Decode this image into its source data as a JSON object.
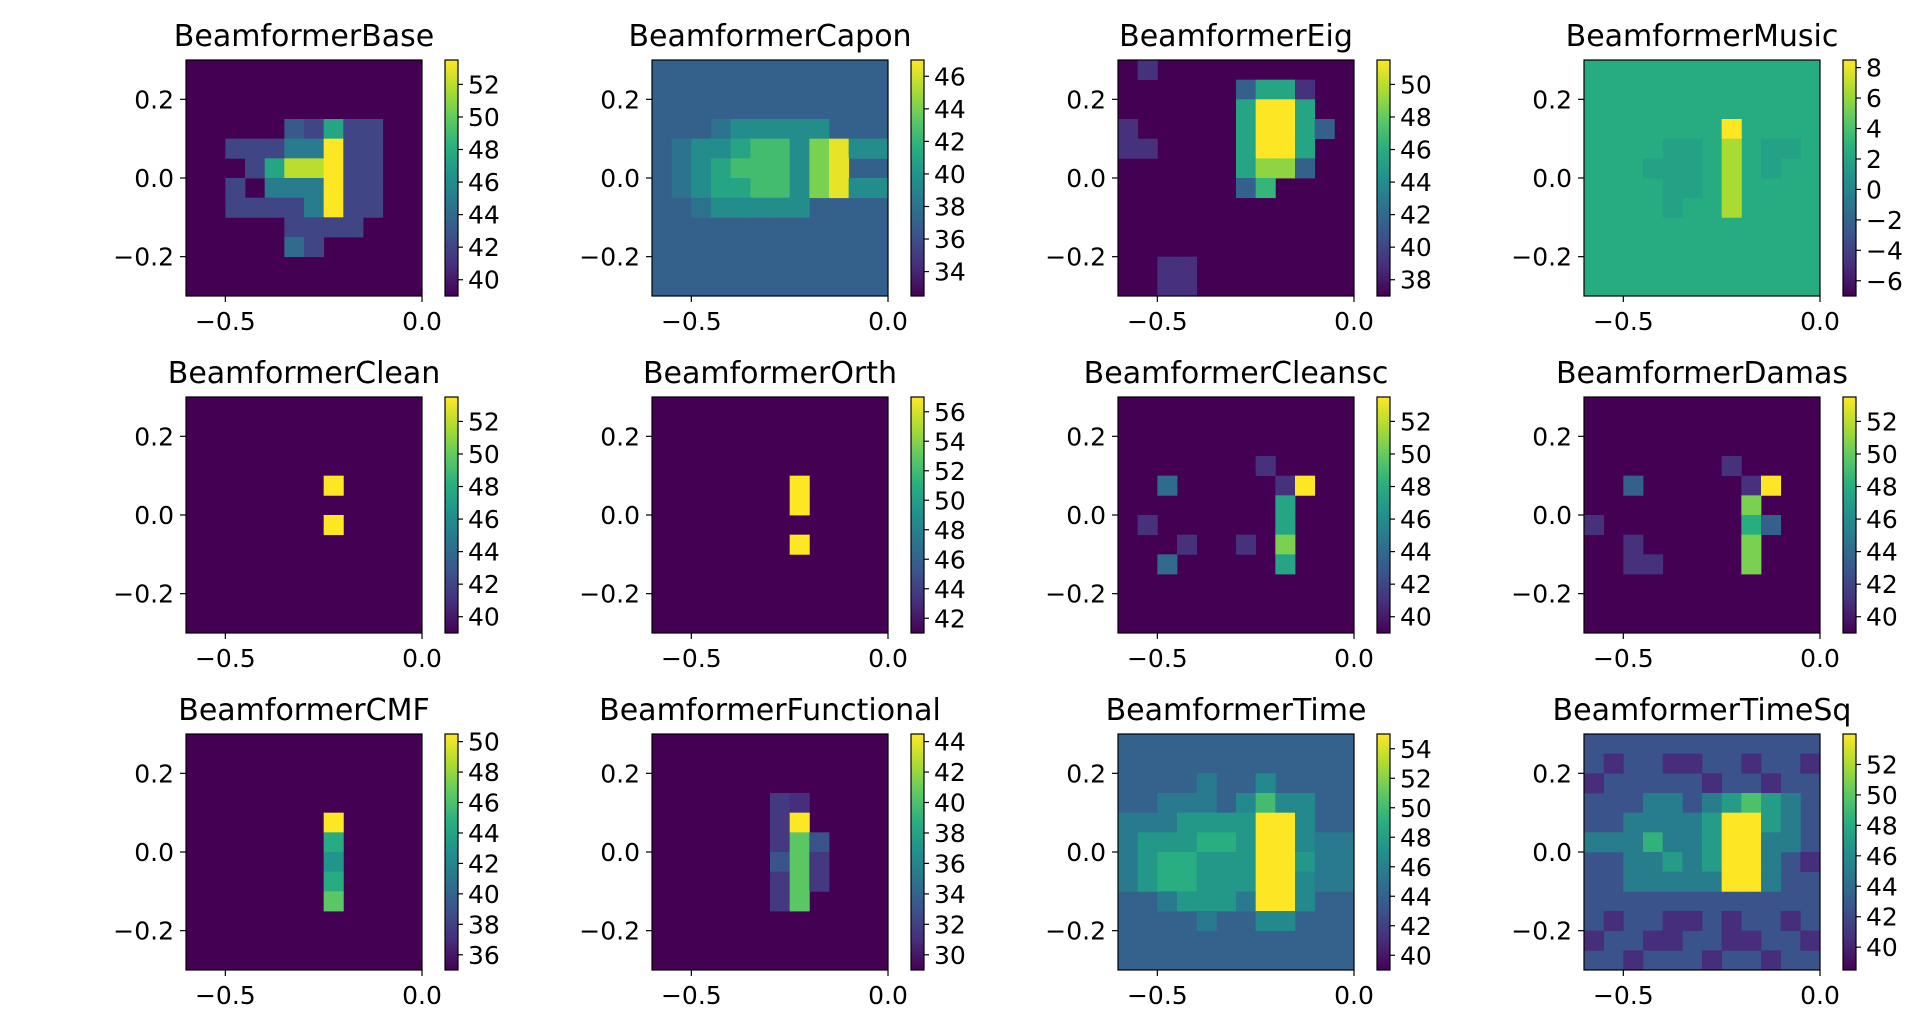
{
  "chart_data": [
    {
      "type": "heatmap",
      "title": "BeamformerBase",
      "xlim": [
        -0.6,
        0.0
      ],
      "ylim": [
        -0.3,
        0.3
      ],
      "xticks": [
        "−0.5",
        "0.0"
      ],
      "yticks": [
        "0.2",
        "0.0",
        "−0.2"
      ],
      "colorbar_ticks": [
        "52",
        "50",
        "48",
        "46",
        "44",
        "42",
        "40"
      ],
      "colorbar_range": [
        39.0,
        53.5
      ],
      "grid_size": 12,
      "cells": {
        "rows": [
          ".....lmgmm..",
          "..mmmhhamm..",
          "...mgbbamm..",
          "..m.hhhamm..",
          "..mmmmhamm..",
          ".....mmmm...",
          ".....cm....."
        ],
        "start_row": 3,
        "levels": {
          "a": 53.5,
          "b": 52,
          "c": 44,
          "g": 47.5,
          "h": 45,
          "l": 43,
          "m": 42
        }
      }
    },
    {
      "type": "heatmap",
      "title": "BeamformerCapon",
      "xlim": [
        -0.6,
        0.0
      ],
      "ylim": [
        -0.3,
        0.3
      ],
      "xticks": [
        "−0.5",
        "0.0"
      ],
      "yticks": [
        "0.2",
        "0.0",
        "−0.2"
      ],
      "colorbar_ticks": [
        "46",
        "44",
        "42",
        "40",
        "38",
        "36",
        "34"
      ],
      "colorbar_range": [
        32.5,
        47.0
      ],
      "grid_size": 12,
      "background": 37,
      "cells": {
        "rows": [
          "..............",
          "...sttttt.....",
          ".sttuvvtwattss",
          ".stuvvvtwa..ss",
          ".stuuvvtwatt..",
          "..sttttt......"
        ],
        "start_row": 2,
        "levels": {
          "s": 38,
          "t": 39.5,
          "u": 41,
          "v": 42.5,
          "w": 44,
          "a": 46.5
        }
      }
    },
    {
      "type": "heatmap",
      "title": "BeamformerEig",
      "xlim": [
        -0.6,
        0.0
      ],
      "ylim": [
        -0.3,
        0.3
      ],
      "xticks": [
        "−0.5",
        "0.0"
      ],
      "yticks": [
        "0.2",
        "0.0",
        "−0.2"
      ],
      "colorbar_ticks": [
        "50",
        "48",
        "46",
        "44",
        "42",
        "40",
        "38"
      ],
      "colorbar_range": [
        37.0,
        51.5
      ],
      "grid_size": 12,
      "cells": {
        "rows": [
          ".n..........",
          "......pqqn..",
          "......qaaq..",
          "n.....qaaqp.",
          "nn....qaaq..",
          "......qbbp..",
          "......pr....",
          "............",
          "............",
          "............",
          "..nn........",
          "..nn........"
        ],
        "start_row": 0,
        "levels": {
          "a": 51.5,
          "b": 49,
          "n": 39,
          "p": 41.5,
          "q": 45.5,
          "r": 46.5
        }
      }
    },
    {
      "type": "heatmap",
      "title": "BeamformerMusic",
      "xlim": [
        -0.6,
        0.0
      ],
      "ylim": [
        -0.3,
        0.3
      ],
      "xticks": [
        "−0.5",
        "0.0"
      ],
      "yticks": [
        "0.2",
        "0.0",
        "−0.2"
      ],
      "colorbar_ticks": [
        "8",
        "6",
        "4",
        "2",
        "0",
        "−2",
        "−4",
        "−6"
      ],
      "colorbar_range": [
        -7.0,
        8.5
      ],
      "grid_size": 12,
      "background": 2.5,
      "cells": {
        "rows": [
          ".......a....",
          "....xx.b.xx.",
          "...xxx.b.x..",
          "....xx.b....",
          "....x..b...."
        ],
        "start_row": 3,
        "levels": {
          "a": 8.5,
          "b": 6.5,
          "x": 1.8
        }
      }
    },
    {
      "type": "heatmap",
      "title": "BeamformerClean",
      "xlim": [
        -0.6,
        0.0
      ],
      "ylim": [
        -0.3,
        0.3
      ],
      "xticks": [
        "−0.5",
        "0.0"
      ],
      "yticks": [
        "0.2",
        "0.0",
        "−0.2"
      ],
      "colorbar_ticks": [
        "52",
        "50",
        "48",
        "46",
        "44",
        "42",
        "40"
      ],
      "colorbar_range": [
        39.0,
        53.5
      ],
      "grid_size": 12,
      "cells": {
        "rows": [
          ".......a....",
          "............",
          ".......a...."
        ],
        "start_row": 4,
        "levels": {
          "a": 53.5
        }
      }
    },
    {
      "type": "heatmap",
      "title": "BeamformerOrth",
      "xlim": [
        -0.6,
        0.0
      ],
      "ylim": [
        -0.3,
        0.3
      ],
      "xticks": [
        "−0.5",
        "0.0"
      ],
      "yticks": [
        "0.2",
        "0.0",
        "−0.2"
      ],
      "colorbar_ticks": [
        "56",
        "54",
        "52",
        "50",
        "48",
        "46",
        "44",
        "42"
      ],
      "colorbar_range": [
        41.0,
        57.0
      ],
      "grid_size": 12,
      "cells": {
        "rows": [
          ".......a....",
          ".......a....",
          "............",
          ".......a...."
        ],
        "start_row": 4,
        "levels": {
          "a": 57.0
        }
      }
    },
    {
      "type": "heatmap",
      "title": "BeamformerCleansc",
      "xlim": [
        -0.6,
        0.0
      ],
      "ylim": [
        -0.3,
        0.3
      ],
      "xticks": [
        "−0.5",
        "0.0"
      ],
      "yticks": [
        "0.2",
        "0.0",
        "−0.2"
      ],
      "colorbar_ticks": [
        "52",
        "50",
        "48",
        "46",
        "44",
        "42",
        "40"
      ],
      "colorbar_range": [
        39.0,
        53.5
      ],
      "grid_size": 12,
      "cells": {
        "rows": [
          ".......k....",
          "..c.....ka..",
          "........g...",
          ".k......g...",
          "...k..k.b...",
          "..c.....g..."
        ],
        "start_row": 3,
        "levels": {
          "a": 53.5,
          "b": 50.5,
          "c": 44,
          "g": 47.5,
          "k": 41
        }
      }
    },
    {
      "type": "heatmap",
      "title": "BeamformerDamas",
      "xlim": [
        -0.6,
        0.0
      ],
      "ylim": [
        -0.3,
        0.3
      ],
      "xticks": [
        "−0.5",
        "0.0"
      ],
      "yticks": [
        "0.2",
        "0.0",
        "−0.2"
      ],
      "colorbar_ticks": [
        "52",
        "50",
        "48",
        "46",
        "44",
        "42",
        "40"
      ],
      "colorbar_range": [
        39.0,
        53.5
      ],
      "grid_size": 12,
      "cells": {
        "rows": [
          ".......k....",
          "..h.....ka..",
          "........b...",
          "k.......gh..",
          "..k.....b...",
          "..kk....b..."
        ],
        "start_row": 3,
        "levels": {
          "a": 53.5,
          "b": 50.5,
          "g": 48,
          "h": 43.5,
          "k": 41
        }
      }
    },
    {
      "type": "heatmap",
      "title": "BeamformerCMF",
      "xlim": [
        -0.6,
        0.0
      ],
      "ylim": [
        -0.3,
        0.3
      ],
      "xticks": [
        "−0.5",
        "0.0"
      ],
      "yticks": [
        "0.2",
        "0.0",
        "−0.2"
      ],
      "colorbar_ticks": [
        "50",
        "48",
        "46",
        "44",
        "42",
        "40",
        "38",
        "36"
      ],
      "colorbar_range": [
        35.0,
        50.5
      ],
      "grid_size": 12,
      "cells": {
        "rows": [
          ".......a....",
          ".......g....",
          ".......h....",
          ".......g....",
          ".......b...."
        ],
        "start_row": 4,
        "levels": {
          "a": 50.5,
          "b": 46.5,
          "g": 44.5,
          "h": 43
        }
      }
    },
    {
      "type": "heatmap",
      "title": "BeamformerFunctional",
      "xlim": [
        -0.6,
        0.0
      ],
      "ylim": [
        -0.3,
        0.3
      ],
      "xticks": [
        "−0.5",
        "0.0"
      ],
      "yticks": [
        "0.2",
        "0.0",
        "−0.2"
      ],
      "colorbar_ticks": [
        "44",
        "42",
        "40",
        "38",
        "36",
        "34",
        "32",
        "30"
      ],
      "colorbar_range": [
        29.0,
        44.5
      ],
      "grid_size": 12,
      "cells": {
        "rows": [
          "......ld....",
          "......la....",
          "......lbm...",
          "......mbl...",
          "......lbl...",
          "......lb...."
        ],
        "start_row": 3,
        "levels": {
          "a": 44.5,
          "b": 40.5,
          "d": 31,
          "l": 31.5,
          "m": 33
        }
      }
    },
    {
      "type": "heatmap",
      "title": "BeamformerTime",
      "xlim": [
        -0.6,
        0.0
      ],
      "ylim": [
        -0.3,
        0.3
      ],
      "xticks": [
        "−0.5",
        "0.0"
      ],
      "yticks": [
        "0.2",
        "0.0",
        "−0.2"
      ],
      "colorbar_ticks": [
        "54",
        "52",
        "50",
        "48",
        "46",
        "44",
        "42",
        "40"
      ],
      "colorbar_range": [
        39.0,
        55.0
      ],
      "grid_size": 12,
      "background": 44,
      "cells": {
        "rows": [
          "....y..z....",
          "..yyy.zgzz..",
          "yyyuuuuaaz..",
          "yuuuwwuaazyy",
          "yuwwuuuaauyy",
          "yuwwuuuaazyy",
          "..yuuuyaaz..",
          "....y..zz..."
        ],
        "start_row": 2,
        "levels": {
          "a": 55,
          "g": 50,
          "u": 47.5,
          "w": 49,
          "y": 45.5,
          "z": 46.5
        }
      }
    },
    {
      "type": "heatmap",
      "title": "BeamformerTimeSq",
      "xlim": [
        -0.6,
        0.0
      ],
      "ylim": [
        -0.3,
        0.3
      ],
      "xticks": [
        "−0.5",
        "0.0"
      ],
      "yticks": [
        "0.2",
        "0.0",
        "−0.2"
      ],
      "colorbar_ticks": [
        "52",
        "50",
        "48",
        "46",
        "44",
        "42",
        "40"
      ],
      "colorbar_range": [
        38.5,
        54.0
      ],
      "grid_size": 12,
      "background": 42.5,
      "cells": {
        "rows": [
          ".d..dd..d..d",
          "d.....d..d..",
          "...oo.oqgqo.",
          "..ooooqaaqo.",
          "ooorooqaaoo.",
          "..ooqoqaao.d",
          "..oooooaao..",
          "............",
          ".d..dd.d..d.",
          "d..dd..dd..d",
          "..d...d..d.."
        ],
        "start_row": 1,
        "levels": {
          "a": 54,
          "d": 40.5,
          "g": 49.5,
          "o": 45,
          "q": 47,
          "r": 48.5
        }
      }
    }
  ]
}
